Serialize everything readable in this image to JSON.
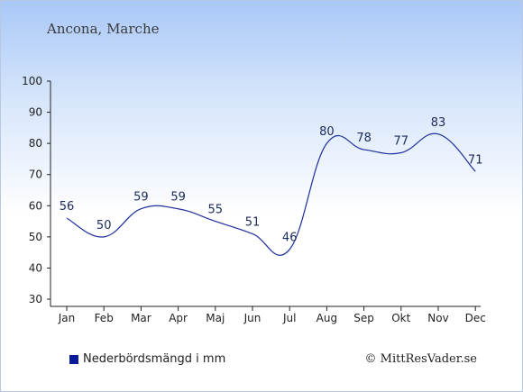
{
  "subtitle": "Ancona, Marche",
  "legend_label": "Nederbördsmängd i mm",
  "copyright": "© MittResVader.se",
  "colors": {
    "line": "#1e2f9e",
    "swatch": "#0a1a9a",
    "axis": "#222222"
  },
  "chart_data": {
    "type": "line",
    "categories": [
      "Jan",
      "Feb",
      "Mar",
      "Apr",
      "Maj",
      "Jun",
      "Jul",
      "Aug",
      "Sep",
      "Okt",
      "Nov",
      "Dec"
    ],
    "series": [
      {
        "values": [
          56,
          50,
          59,
          59,
          55,
          51,
          46,
          80,
          78,
          77,
          83,
          71
        ]
      }
    ],
    "ylim": [
      30,
      100
    ],
    "yticks": [
      30,
      40,
      50,
      60,
      70,
      80,
      90,
      100
    ],
    "grid": false,
    "legend": "bottom-left"
  }
}
